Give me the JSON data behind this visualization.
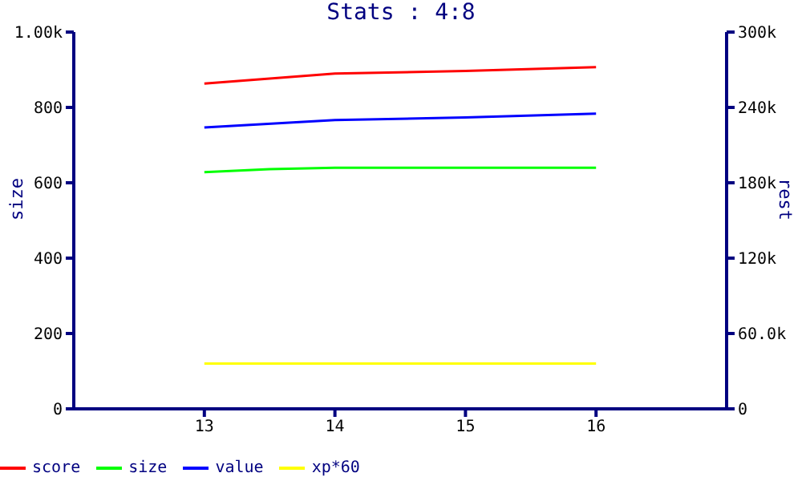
{
  "chart_data": {
    "type": "line",
    "title": "Stats : 4:8",
    "ylabel": "size",
    "y2label": "rest",
    "xlim": [
      12,
      17
    ],
    "xticks": [
      13,
      14,
      15,
      16
    ],
    "ylim": [
      0,
      1000
    ],
    "yticks": [
      0,
      200,
      400,
      600,
      800,
      {
        "value": 1000,
        "label": "1.00k"
      }
    ],
    "y2lim": [
      0,
      300000
    ],
    "y2ticks": [
      0,
      {
        "value": 60000,
        "label": "60.0k"
      },
      {
        "value": 120000,
        "label": "120k"
      },
      {
        "value": 180000,
        "label": "180k"
      },
      {
        "value": 240000,
        "label": "240k"
      },
      {
        "value": 300000,
        "label": "300k"
      }
    ],
    "series": [
      {
        "name": "score",
        "color": "#ff0000",
        "axis": "y2",
        "x": [
          13,
          14,
          15,
          16
        ],
        "values": [
          259000,
          267000,
          269000,
          272000
        ]
      },
      {
        "name": "size",
        "color": "#00ff00",
        "x": [
          13,
          13.5,
          14,
          16
        ],
        "values": [
          628,
          636,
          640,
          640
        ]
      },
      {
        "name": "value",
        "color": "#0000ff",
        "axis": "y2",
        "x": [
          13,
          14,
          15,
          16
        ],
        "values": [
          224000,
          230000,
          232000,
          235000
        ]
      },
      {
        "name": "xp*60",
        "color": "#ffff00",
        "axis": "y2",
        "x": [
          13,
          16
        ],
        "values": [
          36000,
          36000
        ]
      }
    ],
    "legend": "bottom left",
    "marker": "none",
    "line_style": "solid"
  }
}
